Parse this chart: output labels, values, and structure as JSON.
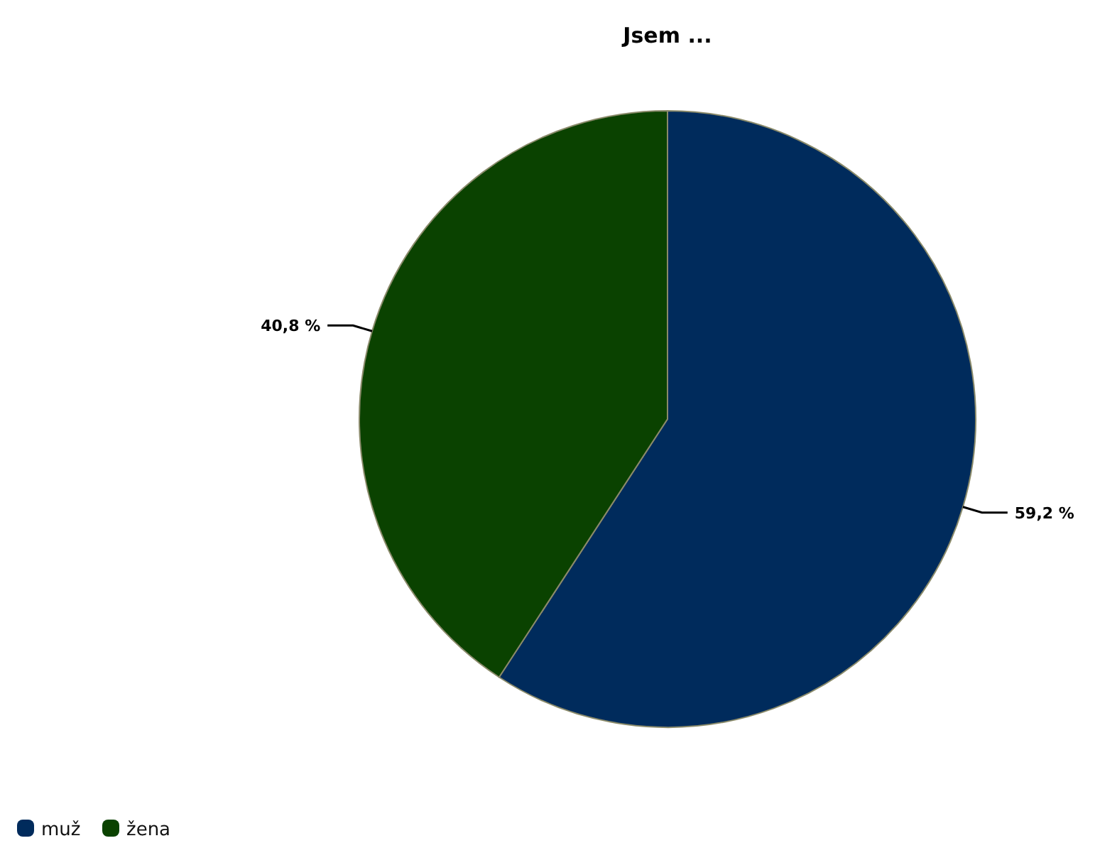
{
  "chart_data": {
    "type": "pie",
    "title": "Jsem ...",
    "categories": [
      "muž",
      "žena"
    ],
    "values": [
      59.2,
      40.8
    ],
    "colors": [
      "#002b5c",
      "#0a4200"
    ],
    "value_labels": [
      "59,2 %",
      "40,8 %"
    ],
    "legend": "bottom left"
  }
}
